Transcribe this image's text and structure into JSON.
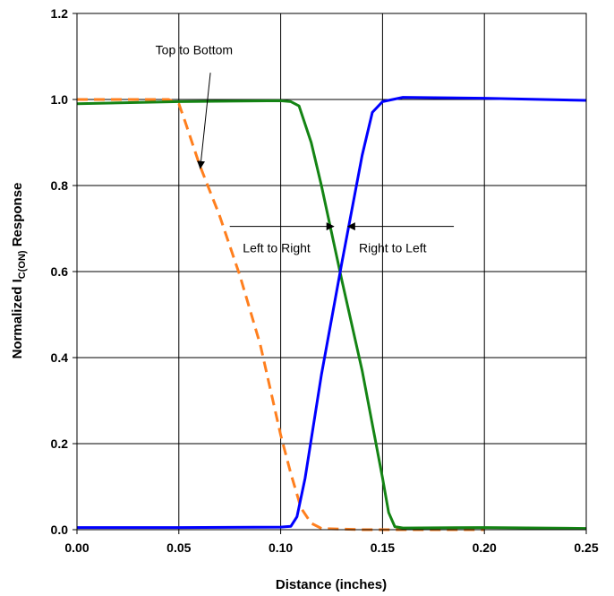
{
  "chart_data": {
    "type": "line",
    "title": "",
    "xlabel": "Distance (inches)",
    "ylabel": {
      "main": "Normalized I",
      "sub": "C(ON)",
      "suffix": " Response"
    },
    "xlim": [
      0,
      0.25
    ],
    "ylim": [
      0,
      1.2
    ],
    "xticks": [
      "0.00",
      "0.05",
      "0.10",
      "0.15",
      "0.20",
      "0.25"
    ],
    "yticks": [
      "0.0",
      "0.2",
      "0.4",
      "0.6",
      "0.8",
      "1.0",
      "1.2"
    ],
    "grid": true,
    "legend": "none",
    "series": [
      {
        "color": "#ff7f1e",
        "dashed": true,
        "points": [
          [
            0,
            1.0
          ],
          [
            0.01,
            1.0
          ],
          [
            0.03,
            1.0
          ],
          [
            0.045,
            1.0
          ],
          [
            0.05,
            0.99
          ],
          [
            0.053,
            0.95
          ],
          [
            0.06,
            0.85
          ],
          [
            0.07,
            0.73
          ],
          [
            0.08,
            0.59
          ],
          [
            0.09,
            0.43
          ],
          [
            0.1,
            0.22
          ],
          [
            0.105,
            0.13
          ],
          [
            0.11,
            0.05
          ],
          [
            0.115,
            0.015
          ],
          [
            0.12,
            0.003
          ],
          [
            0.14,
            0.0
          ],
          [
            0.16,
            0.0
          ],
          [
            0.18,
            0.0
          ],
          [
            0.2,
            0.0
          ]
        ]
      },
      {
        "color": "#148414",
        "dashed": false,
        "points": [
          [
            0,
            0.99
          ],
          [
            0.05,
            0.995
          ],
          [
            0.1,
            0.997
          ],
          [
            0.105,
            0.995
          ],
          [
            0.109,
            0.985
          ],
          [
            0.115,
            0.9
          ],
          [
            0.12,
            0.8
          ],
          [
            0.13,
            0.58
          ],
          [
            0.14,
            0.37
          ],
          [
            0.15,
            0.12
          ],
          [
            0.153,
            0.04
          ],
          [
            0.156,
            0.007
          ],
          [
            0.16,
            0.004
          ],
          [
            0.2,
            0.005
          ],
          [
            0.25,
            0.003
          ]
        ]
      },
      {
        "color": "#0000ff",
        "dashed": false,
        "points": [
          [
            0,
            0.005
          ],
          [
            0.05,
            0.005
          ],
          [
            0.1,
            0.006
          ],
          [
            0.105,
            0.008
          ],
          [
            0.108,
            0.03
          ],
          [
            0.112,
            0.12
          ],
          [
            0.12,
            0.36
          ],
          [
            0.13,
            0.62
          ],
          [
            0.14,
            0.87
          ],
          [
            0.145,
            0.97
          ],
          [
            0.15,
            0.995
          ],
          [
            0.16,
            1.005
          ],
          [
            0.2,
            1.003
          ],
          [
            0.25,
            0.998
          ]
        ]
      }
    ],
    "annotations": [
      {
        "text": "Top to Bottom",
        "x": 0.0575,
        "y": 1.105,
        "arrow_from": [
          0.0655,
          1.062
        ],
        "arrow_to": [
          0.0605,
          0.84
        ]
      },
      {
        "text": "Left to Right",
        "x": 0.098,
        "y": 0.645,
        "arrow_from": [
          0.075,
          0.705
        ],
        "arrow_to": [
          0.126,
          0.705
        ]
      },
      {
        "text": "Right to Left",
        "x": 0.155,
        "y": 0.645,
        "arrow_from": [
          0.185,
          0.705
        ],
        "arrow_to": [
          0.133,
          0.705
        ]
      }
    ]
  }
}
